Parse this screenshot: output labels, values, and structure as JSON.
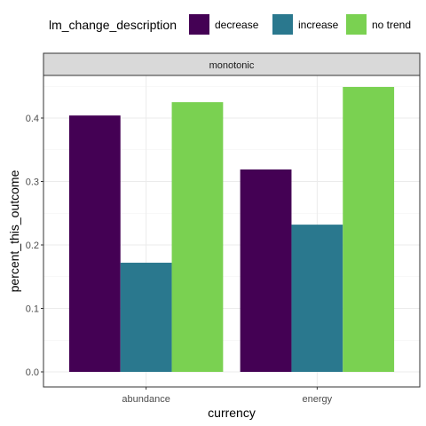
{
  "chart_data": {
    "type": "bar",
    "facet_label": "monotonic",
    "categories": [
      "abundance",
      "energy"
    ],
    "series": [
      {
        "name": "decrease",
        "color": "#440154",
        "values": [
          0.404,
          0.319
        ]
      },
      {
        "name": "increase",
        "color": "#2a788e",
        "values": [
          0.172,
          0.232
        ]
      },
      {
        "name": "no trend",
        "color": "#7ad151",
        "values": [
          0.425,
          0.449
        ]
      }
    ],
    "legend_title": "lm_change_description",
    "legend_position": "top",
    "xlabel": "currency",
    "ylabel": "percent_this_outcome",
    "ylim": [
      0,
      0.45
    ],
    "yticks": [
      0.0,
      0.1,
      0.2,
      0.3,
      0.4
    ],
    "ytick_labels": [
      "0.0",
      "0.1",
      "0.2",
      "0.3",
      "0.4"
    ],
    "grid": true
  }
}
